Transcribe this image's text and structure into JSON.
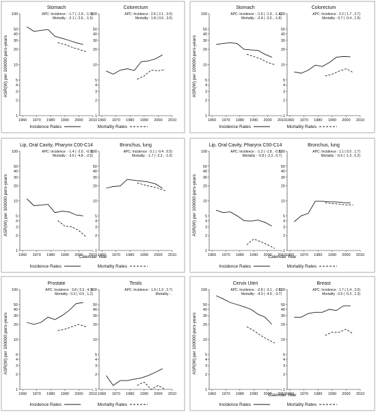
{
  "common": {
    "ylabel": "ASR(W) per 100000 pers-years",
    "xlabel": "Calendar Year",
    "legend_incidence": "Incidence Rates",
    "legend_mortality": "Mortality Rates",
    "yticks": [
      "1",
      "2",
      "3",
      "4",
      "5",
      "10",
      "20",
      "30",
      "40",
      "50",
      "100"
    ],
    "xticks": [
      "1960",
      "1970",
      "1980",
      "1990",
      "2000",
      "2010"
    ]
  },
  "chart_data": [
    {
      "type": "line",
      "title": "Stomach",
      "apc": [
        "APC: Incidence : -1.7 ( -1.9 , -1.5)",
        "Mortality : -2.1 ( -2.6 , -1.5)"
      ],
      "x_range": [
        1958,
        2010
      ],
      "y_range": [
        1,
        100
      ],
      "y_scale": "log",
      "series": [
        {
          "name": "Incidence Rates",
          "points": [
            [
              1963,
              55
            ],
            [
              1968,
              45
            ],
            [
              1973,
              47
            ],
            [
              1978,
              49
            ],
            [
              1983,
              36
            ],
            [
              1988,
              33
            ],
            [
              1993,
              30
            ],
            [
              1998,
              27
            ],
            [
              2003,
              25
            ]
          ]
        },
        {
          "name": "Mortality Rates",
          "points": [
            [
              1985,
              27
            ],
            [
              1990,
              25
            ],
            [
              1995,
              22
            ],
            [
              2000,
              20
            ],
            [
              2005,
              18
            ]
          ]
        }
      ]
    },
    {
      "type": "line",
      "title": "Colorectum",
      "apc": [
        "APC: Incidence : 2.6 ( 2.1 , 3.0)",
        "Mortality : 1.8 ( 0.6 , 3.0)"
      ],
      "x_range": [
        1958,
        2010
      ],
      "y_range": [
        1,
        100
      ],
      "y_scale": "log",
      "series": [
        {
          "name": "Incidence Rates",
          "points": [
            [
              1963,
              7.5
            ],
            [
              1968,
              6.5
            ],
            [
              1973,
              7.8
            ],
            [
              1978,
              8.3
            ],
            [
              1983,
              7.7
            ],
            [
              1988,
              11.5
            ],
            [
              1993,
              11.8
            ],
            [
              1998,
              13.0
            ],
            [
              2003,
              15.5
            ]
          ]
        },
        {
          "name": "Mortality Rates",
          "points": [
            [
              1985,
              5.2
            ],
            [
              1990,
              6.0
            ],
            [
              1995,
              7.8
            ],
            [
              2000,
              7.6
            ],
            [
              2005,
              8.0
            ]
          ]
        }
      ]
    },
    {
      "type": "line",
      "title": "Stomach",
      "apc": [
        "APC: Incidence : -1.6 ( -1.9 , -1.4)",
        "Mortality : -2.4 ( -3.0 , -1.8)"
      ],
      "x_range": [
        1958,
        2010
      ],
      "y_range": [
        1,
        100
      ],
      "y_scale": "log",
      "series": [
        {
          "name": "Incidence Rates",
          "points": [
            [
              1963,
              25
            ],
            [
              1968,
              26
            ],
            [
              1973,
              27
            ],
            [
              1978,
              26
            ],
            [
              1983,
              20
            ],
            [
              1988,
              19.5
            ],
            [
              1993,
              19
            ],
            [
              1998,
              16
            ],
            [
              2003,
              14
            ]
          ]
        },
        {
          "name": "Mortality Rates",
          "points": [
            [
              1985,
              16
            ],
            [
              1990,
              14.5
            ],
            [
              1995,
              13
            ],
            [
              2000,
              11
            ],
            [
              2005,
              10
            ]
          ]
        }
      ]
    },
    {
      "type": "line",
      "title": "Colorectum",
      "apc": [
        "APC: Incidence : 2.2 ( 1.7 , 2.7)",
        "Mortality : 0.7 ( -0.4 , 1.9)"
      ],
      "x_range": [
        1958,
        2010
      ],
      "y_range": [
        1,
        100
      ],
      "y_scale": "log",
      "series": [
        {
          "name": "Incidence Rates",
          "points": [
            [
              1963,
              7.2
            ],
            [
              1968,
              6.8
            ],
            [
              1973,
              7.8
            ],
            [
              1978,
              9.8
            ],
            [
              1983,
              9.2
            ],
            [
              1988,
              11.0
            ],
            [
              1993,
              14.0
            ],
            [
              1998,
              14.5
            ],
            [
              2003,
              14.3
            ]
          ]
        },
        {
          "name": "Mortality Rates",
          "points": [
            [
              1985,
              6.0
            ],
            [
              1990,
              6.5
            ],
            [
              1995,
              7.5
            ],
            [
              2000,
              8.3
            ],
            [
              2005,
              7.0
            ]
          ]
        }
      ]
    },
    {
      "type": "line",
      "title": "Lip, Oral Cavity, Pharynx C00-C14",
      "apc": [
        "APC: Incidence : -1.4 ( -2.0 , -0.9)",
        "Mortality : -3.6 ( -4.8 , -2.5)"
      ],
      "x_range": [
        1958,
        2010
      ],
      "y_range": [
        1,
        100
      ],
      "y_scale": "log",
      "series": [
        {
          "name": "Incidence Rates",
          "points": [
            [
              1963,
              11
            ],
            [
              1968,
              8
            ],
            [
              1973,
              8.2
            ],
            [
              1978,
              8.5
            ],
            [
              1983,
              5.8
            ],
            [
              1988,
              6.2
            ],
            [
              1993,
              6
            ],
            [
              1998,
              5.2
            ],
            [
              2003,
              5
            ]
          ]
        },
        {
          "name": "Mortality Rates",
          "points": [
            [
              1985,
              4
            ],
            [
              1990,
              3.1
            ],
            [
              1995,
              3.0
            ],
            [
              2000,
              2.5
            ],
            [
              2005,
              1.9
            ]
          ]
        }
      ]
    },
    {
      "type": "line",
      "title": "Bronchus, lung",
      "apc": [
        "APC: Incidence : 0.1 ( -0.4 , 0.5)",
        "Mortality : -1.7 ( -2.3 , -1.0)"
      ],
      "x_range": [
        1958,
        2010
      ],
      "y_range": [
        1,
        100
      ],
      "y_scale": "log",
      "series": [
        {
          "name": "Incidence Rates",
          "points": [
            [
              1963,
              18
            ],
            [
              1968,
              19.5
            ],
            [
              1973,
              20
            ],
            [
              1978,
              27
            ],
            [
              1983,
              26
            ],
            [
              1988,
              25
            ],
            [
              1993,
              24
            ],
            [
              1998,
              22
            ],
            [
              2003,
              18
            ]
          ]
        },
        {
          "name": "Mortality Rates",
          "points": [
            [
              1985,
              23
            ],
            [
              1990,
              21
            ],
            [
              1995,
              19.5
            ],
            [
              2000,
              18
            ],
            [
              2005,
              16
            ]
          ]
        }
      ]
    },
    {
      "type": "line",
      "title": "Lip, Oral Cavity, Pharynx C00-C14",
      "apc": [
        "APC: Incidence : -1.2 ( -1.8 , -0.8)",
        "Mortality : -0.8 ( -2.3 , 0.7)"
      ],
      "x_range": [
        1958,
        2010
      ],
      "y_range": [
        1,
        100
      ],
      "y_scale": "log",
      "series": [
        {
          "name": "Incidence Rates",
          "points": [
            [
              1963,
              6.5
            ],
            [
              1968,
              5.8
            ],
            [
              1973,
              6.0
            ],
            [
              1978,
              5.0
            ],
            [
              1983,
              4.0
            ],
            [
              1988,
              3.9
            ],
            [
              1993,
              4.1
            ],
            [
              1998,
              3.7
            ],
            [
              2003,
              3.1
            ]
          ]
        },
        {
          "name": "Mortality Rates",
          "points": [
            [
              1985,
              1.3
            ],
            [
              1990,
              1.7
            ],
            [
              1995,
              1.5
            ],
            [
              2000,
              1.3
            ],
            [
              2005,
              1.1
            ]
          ]
        }
      ]
    },
    {
      "type": "line",
      "title": "Bronchus, lung",
      "apc": [
        "APC: Incidence : 1.1 ( 0.5 , 1.7)",
        "Mortality : -0.6 ( -1.3 , 0.2)"
      ],
      "x_range": [
        1958,
        2010
      ],
      "y_range": [
        1,
        100
      ],
      "y_scale": "log",
      "series": [
        {
          "name": "Incidence Rates",
          "points": [
            [
              1963,
              3.8
            ],
            [
              1968,
              5.0
            ],
            [
              1973,
              5.6
            ],
            [
              1978,
              9.8
            ],
            [
              1983,
              9.8
            ],
            [
              1988,
              9.6
            ],
            [
              1993,
              9.5
            ],
            [
              1998,
              9.2
            ],
            [
              2003,
              9.1
            ]
          ]
        },
        {
          "name": "Mortality Rates",
          "points": [
            [
              1985,
              9.2
            ],
            [
              1990,
              8.8
            ],
            [
              1995,
              8.6
            ],
            [
              2000,
              8.3
            ],
            [
              2005,
              8.2
            ]
          ]
        }
      ]
    },
    {
      "type": "line",
      "title": "Prostate",
      "apc": [
        "APC: Incidence : 3.8 ( 3.3 , 4.3)",
        "Mortality : 0.3 ( -0.5 , 1.2)"
      ],
      "x_range": [
        1958,
        2010
      ],
      "y_range": [
        1,
        100
      ],
      "y_scale": "log",
      "series": [
        {
          "name": "Incidence Rates",
          "points": [
            [
              1963,
              22
            ],
            [
              1968,
              20
            ],
            [
              1973,
              22
            ],
            [
              1978,
              28
            ],
            [
              1983,
              25
            ],
            [
              1988,
              30
            ],
            [
              1993,
              38
            ],
            [
              1998,
              52
            ],
            [
              2003,
              55
            ]
          ]
        },
        {
          "name": "Mortality Rates",
          "points": [
            [
              1985,
              15
            ],
            [
              1990,
              16
            ],
            [
              1995,
              18
            ],
            [
              2000,
              20
            ],
            [
              2005,
              18
            ]
          ]
        }
      ]
    },
    {
      "type": "line",
      "title": "Testis",
      "apc": [
        "APC: Incidence : 1.9 ( 1.0 , 2.7)",
        "Mortality : ."
      ],
      "x_range": [
        1958,
        2010
      ],
      "y_range": [
        1,
        100
      ],
      "y_scale": "log",
      "series": [
        {
          "name": "Incidence Rates",
          "points": [
            [
              1963,
              1.9
            ],
            [
              1968,
              1.2
            ],
            [
              1973,
              1.5
            ],
            [
              1978,
              1.5
            ],
            [
              1983,
              1.6
            ],
            [
              1988,
              1.7
            ],
            [
              1993,
              1.9
            ],
            [
              1998,
              2.2
            ],
            [
              2003,
              2.6
            ]
          ]
        },
        {
          "name": "Mortality Rates",
          "points": [
            [
              1985,
              1.2
            ],
            [
              1990,
              1.4
            ],
            [
              1995,
              1.0
            ],
            [
              2000,
              1.2
            ],
            [
              2005,
              1.0
            ]
          ]
        }
      ]
    },
    {
      "type": "line",
      "title": "Cervix Uteri",
      "apc": [
        "APC: Incidence : -2.8 ( -3.1 , -2.6)",
        "Mortality : -4.3 ( -4.9 , -3.7)"
      ],
      "x_range": [
        1958,
        2010
      ],
      "y_range": [
        1,
        100
      ],
      "y_scale": "log",
      "series": [
        {
          "name": "Incidence Rates",
          "points": [
            [
              1963,
              75
            ],
            [
              1968,
              65
            ],
            [
              1973,
              55
            ],
            [
              1978,
              50
            ],
            [
              1983,
              45
            ],
            [
              1988,
              40
            ],
            [
              1993,
              32
            ],
            [
              1998,
              28
            ],
            [
              2003,
              20
            ]
          ]
        },
        {
          "name": "Mortality Rates",
          "points": [
            [
              1985,
              18
            ],
            [
              1990,
              15
            ],
            [
              1995,
              12
            ],
            [
              2000,
              10
            ],
            [
              2005,
              8.5
            ]
          ]
        }
      ]
    },
    {
      "type": "line",
      "title": "Breast",
      "apc": [
        "APC: Incidence : 1.7 ( 1.4 , 2.0)",
        "Mortality : 0.5 ( -0.3 , 1.3)"
      ],
      "x_range": [
        1958,
        2010
      ],
      "y_range": [
        1,
        100
      ],
      "y_scale": "log",
      "series": [
        {
          "name": "Incidence Rates",
          "points": [
            [
              1963,
              28
            ],
            [
              1968,
              28
            ],
            [
              1973,
              33
            ],
            [
              1978,
              35
            ],
            [
              1983,
              35
            ],
            [
              1988,
              40
            ],
            [
              1993,
              38
            ],
            [
              1998,
              47
            ],
            [
              2003,
              47
            ]
          ]
        },
        {
          "name": "Mortality Rates",
          "points": [
            [
              1985,
              12
            ],
            [
              1990,
              14
            ],
            [
              1995,
              14
            ],
            [
              2000,
              16
            ],
            [
              2005,
              13
            ]
          ]
        }
      ]
    }
  ]
}
